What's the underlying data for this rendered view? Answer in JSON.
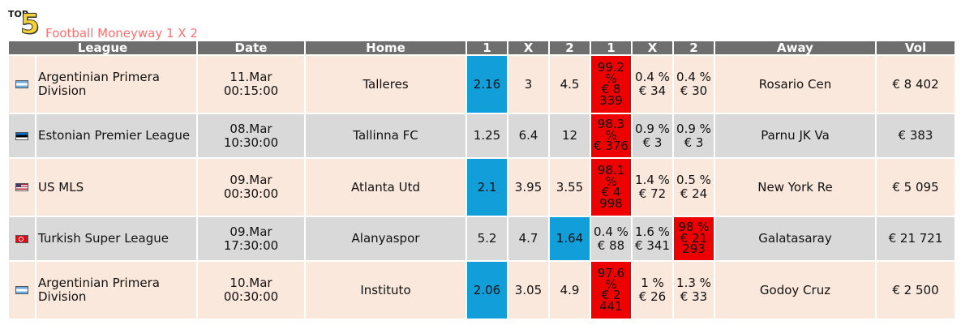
{
  "title": {
    "logo_top": "TOP",
    "logo_five": "5",
    "text": "Football Moneyway 1 X 2"
  },
  "headers": [
    "League",
    "Date",
    "Home",
    "1",
    "X",
    "2",
    "1",
    "X",
    "2",
    "Away",
    "Vol"
  ],
  "colors": {
    "header_bg": "#6e6e6e",
    "row_peach": "#fbe8dc",
    "row_grey": "#d9d9d9",
    "highlight_blue": "#119ed9",
    "highlight_red": "#ee0000",
    "title_color": "#ff6f6f"
  },
  "rows": [
    {
      "flag": "argentina-flag-icon",
      "league": "Argentinian Primera Division",
      "date": "11.Mar",
      "time": "00:15:00",
      "home": "Talleres",
      "odds_1": "2.16",
      "odds_x": "3",
      "odds_2": "4.5",
      "mw_1_pct": "99.2 %",
      "mw_1_amt": "€ 8 339",
      "mw_x_pct": "0.4 %",
      "mw_x_amt": "€ 34",
      "mw_2_pct": "0.4 %",
      "mw_2_amt": "€ 30",
      "away": "Rosario Cen",
      "vol": "€ 8 402"
    },
    {
      "flag": "estonia-flag-icon",
      "league": "Estonian Premier League",
      "date": "08.Mar",
      "time": "10:30:00",
      "home": "Tallinna FC",
      "odds_1": "1.25",
      "odds_x": "6.4",
      "odds_2": "12",
      "mw_1_pct": "98.3 %",
      "mw_1_amt": "€ 376",
      "mw_x_pct": "0.9 %",
      "mw_x_amt": "€ 3",
      "mw_2_pct": "0.9 %",
      "mw_2_amt": "€ 3",
      "away": "Parnu JK Va",
      "vol": "€ 383"
    },
    {
      "flag": "usa-flag-icon",
      "league": "US MLS",
      "date": "09.Mar",
      "time": "00:30:00",
      "home": "Atlanta Utd",
      "odds_1": "2.1",
      "odds_x": "3.95",
      "odds_2": "3.55",
      "mw_1_pct": "98.1 %",
      "mw_1_amt": "€ 4 998",
      "mw_x_pct": "1.4 %",
      "mw_x_amt": "€ 72",
      "mw_2_pct": "0.5 %",
      "mw_2_amt": "€ 24",
      "away": "New York Re",
      "vol": "€ 5 095"
    },
    {
      "flag": "turkey-flag-icon",
      "league": "Turkish Super League",
      "date": "09.Mar",
      "time": "17:30:00",
      "home": "Alanyaspor",
      "odds_1": "5.2",
      "odds_x": "4.7",
      "odds_2": "1.64",
      "mw_1_pct": "0.4 %",
      "mw_1_amt": "€ 88",
      "mw_x_pct": "1.6 %",
      "mw_x_amt": "€ 341",
      "mw_2_pct": "98 %",
      "mw_2_amt": "€ 21 293",
      "away": "Galatasaray",
      "vol": "€ 21 721"
    },
    {
      "flag": "argentina-flag-icon",
      "league": "Argentinian Primera Division",
      "date": "10.Mar",
      "time": "00:30:00",
      "home": "Instituto",
      "odds_1": "2.06",
      "odds_x": "3.05",
      "odds_2": "4.9",
      "mw_1_pct": "97.6 %",
      "mw_1_amt": "€ 2 441",
      "mw_x_pct": "1 %",
      "mw_x_amt": "€ 26",
      "mw_2_pct": "1.3 %",
      "mw_2_amt": "€ 33",
      "away": "Godoy Cruz",
      "vol": "€ 2 500"
    }
  ]
}
